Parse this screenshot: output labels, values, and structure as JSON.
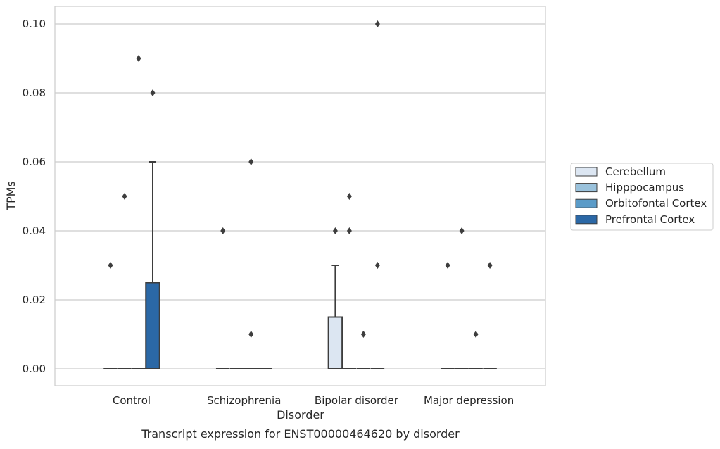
{
  "chart_data": {
    "type": "box",
    "caption": "Transcript expression for ENST00000464620 by disorder",
    "xlabel": "Disorder",
    "ylabel": "TPMs",
    "ylim": [
      -0.005,
      0.105
    ],
    "yticks": [
      "0.00",
      "0.02",
      "0.04",
      "0.06",
      "0.08",
      "0.10"
    ],
    "ytick_values": [
      0.0,
      0.02,
      0.04,
      0.06,
      0.08,
      0.1
    ],
    "grid": true,
    "legend_position": "right",
    "categories": [
      "Control",
      "Schizophrenia",
      "Bipolar disorder",
      "Major depression"
    ],
    "series": [
      {
        "name": "Cerebellum",
        "color": "#dce6f2",
        "boxes": [
          {
            "q1": 0,
            "median": 0,
            "q3": 0,
            "whisker_low": 0,
            "whisker_high": 0,
            "outliers": [
              0.03
            ]
          },
          {
            "q1": 0,
            "median": 0,
            "q3": 0,
            "whisker_low": 0,
            "whisker_high": 0,
            "outliers": [
              0.04
            ]
          },
          {
            "q1": 0,
            "median": 0,
            "q3": 0.015,
            "whisker_low": 0,
            "whisker_high": 0.03,
            "outliers": [
              0.04
            ]
          },
          {
            "q1": 0,
            "median": 0,
            "q3": 0,
            "whisker_low": 0,
            "whisker_high": 0,
            "outliers": [
              0.03
            ]
          }
        ]
      },
      {
        "name": "Hipppocampus",
        "color": "#9ac2dc",
        "boxes": [
          {
            "q1": 0,
            "median": 0,
            "q3": 0,
            "whisker_low": 0,
            "whisker_high": 0,
            "outliers": [
              0.05
            ]
          },
          {
            "q1": 0,
            "median": 0,
            "q3": 0,
            "whisker_low": 0,
            "whisker_high": 0,
            "outliers": []
          },
          {
            "q1": 0,
            "median": 0,
            "q3": 0,
            "whisker_low": 0,
            "whisker_high": 0,
            "outliers": [
              0.05,
              0.04
            ]
          },
          {
            "q1": 0,
            "median": 0,
            "q3": 0,
            "whisker_low": 0,
            "whisker_high": 0,
            "outliers": [
              0.04
            ]
          }
        ]
      },
      {
        "name": "Orbitofontal Cortex",
        "color": "#5a9bc8",
        "boxes": [
          {
            "q1": 0,
            "median": 0,
            "q3": 0,
            "whisker_low": 0,
            "whisker_high": 0,
            "outliers": [
              0.09
            ]
          },
          {
            "q1": 0,
            "median": 0,
            "q3": 0,
            "whisker_low": 0,
            "whisker_high": 0,
            "outliers": [
              0.06,
              0.01
            ]
          },
          {
            "q1": 0,
            "median": 0,
            "q3": 0,
            "whisker_low": 0,
            "whisker_high": 0,
            "outliers": [
              0.01
            ]
          },
          {
            "q1": 0,
            "median": 0,
            "q3": 0,
            "whisker_low": 0,
            "whisker_high": 0,
            "outliers": [
              0.01
            ]
          }
        ]
      },
      {
        "name": "Prefrontal Cortex",
        "color": "#2b68a6",
        "boxes": [
          {
            "q1": 0,
            "median": 0,
            "q3": 0.025,
            "whisker_low": 0,
            "whisker_high": 0.06,
            "outliers": [
              0.08
            ]
          },
          {
            "q1": 0,
            "median": 0,
            "q3": 0,
            "whisker_low": 0,
            "whisker_high": 0,
            "outliers": []
          },
          {
            "q1": 0,
            "median": 0,
            "q3": 0,
            "whisker_low": 0,
            "whisker_high": 0,
            "outliers": [
              0.1,
              0.03
            ]
          },
          {
            "q1": 0,
            "median": 0,
            "q3": 0,
            "whisker_low": 0,
            "whisker_high": 0,
            "outliers": [
              0.03
            ]
          }
        ]
      }
    ]
  }
}
